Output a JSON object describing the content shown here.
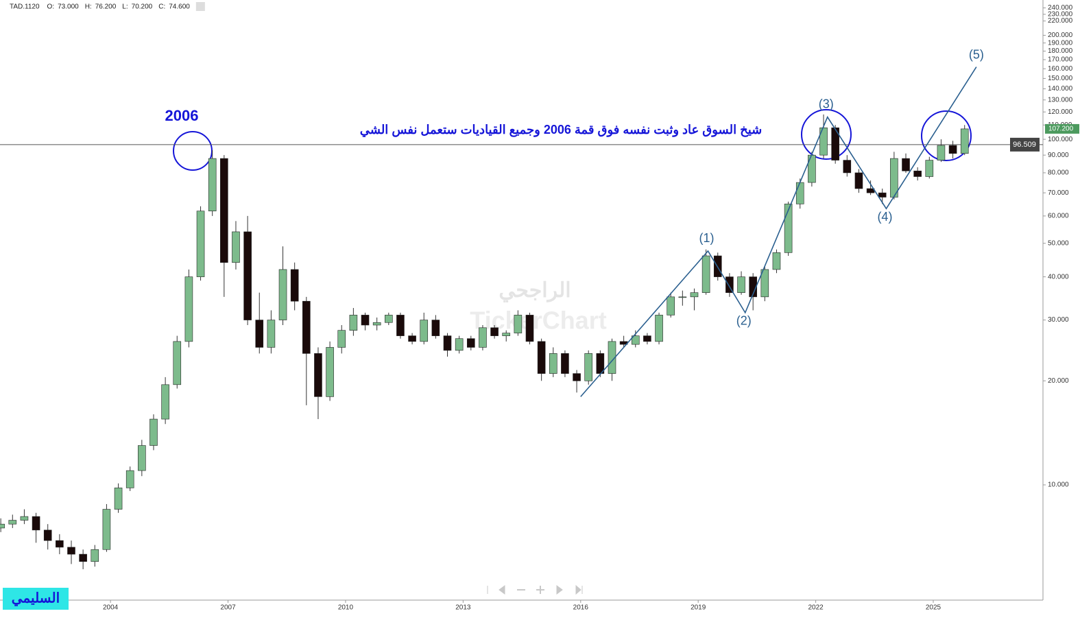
{
  "header": {
    "symbol": "TAD.1120",
    "fields": [
      {
        "label": "O:",
        "value": "73.000"
      },
      {
        "label": "H:",
        "value": "76.200"
      },
      {
        "label": "L:",
        "value": "70.200"
      },
      {
        "label": "C:",
        "value": "74.600"
      }
    ]
  },
  "chart_data": {
    "type": "candlestick",
    "log_scale": true,
    "xlim": [
      2001.18,
      2027.8
    ],
    "ylim": [
      4.64,
      253
    ],
    "xticks": [
      2004,
      2007,
      2010,
      2013,
      2016,
      2019,
      2022,
      2025
    ],
    "yticks": [
      {
        "value": 10,
        "label": "10.000"
      },
      {
        "value": 20,
        "label": "20.000"
      },
      {
        "value": 30,
        "label": "30.000"
      },
      {
        "value": 40,
        "label": "40.000"
      },
      {
        "value": 50,
        "label": "50.000"
      },
      {
        "value": 60,
        "label": "60.000"
      },
      {
        "value": 70,
        "label": "70.000"
      },
      {
        "value": 80,
        "label": "80.000"
      },
      {
        "value": 90,
        "label": "90.000"
      },
      {
        "value": 100,
        "label": "100.000"
      },
      {
        "value": 110,
        "label": "110.000"
      },
      {
        "value": 120,
        "label": "120.000"
      },
      {
        "value": 130,
        "label": "130.000"
      },
      {
        "value": 140,
        "label": "140.000"
      },
      {
        "value": 150,
        "label": "150.000"
      },
      {
        "value": 160,
        "label": "160.000"
      },
      {
        "value": 170,
        "label": "170.000"
      },
      {
        "value": 180,
        "label": "180.000"
      },
      {
        "value": 190,
        "label": "190.000"
      },
      {
        "value": 200,
        "label": "200.000"
      },
      {
        "value": 220,
        "label": "220.000"
      },
      {
        "value": 230,
        "label": "230.000"
      },
      {
        "value": 240,
        "label": "240.000"
      }
    ],
    "up_color": "#7dbb8c",
    "down_color": "#1a0a0a",
    "x": [
      2001.2,
      2001.5,
      2001.8,
      2002.1,
      2002.4,
      2002.7,
      2003.0,
      2003.3,
      2003.6,
      2003.9,
      2004.2,
      2004.5,
      2004.8,
      2005.1,
      2005.4,
      2005.7,
      2006.0,
      2006.3,
      2006.6,
      2006.9,
      2007.2,
      2007.5,
      2007.8,
      2008.1,
      2008.4,
      2008.7,
      2009.0,
      2009.3,
      2009.6,
      2009.9,
      2010.2,
      2010.5,
      2010.8,
      2011.1,
      2011.4,
      2011.7,
      2012.0,
      2012.3,
      2012.6,
      2012.9,
      2013.2,
      2013.5,
      2013.8,
      2014.1,
      2014.4,
      2014.7,
      2015.0,
      2015.3,
      2015.6,
      2015.9,
      2016.2,
      2016.5,
      2016.8,
      2017.1,
      2017.4,
      2017.7,
      2018.0,
      2018.3,
      2018.6,
      2018.9,
      2019.2,
      2019.5,
      2019.8,
      2020.1,
      2020.4,
      2020.7,
      2021.0,
      2021.3,
      2021.6,
      2021.9,
      2022.2,
      2022.5,
      2022.8,
      2023.1,
      2023.4,
      2023.7,
      2024.0,
      2024.3,
      2024.6,
      2024.9,
      2025.2,
      2025.5,
      2025.8
    ],
    "open": [
      7.5,
      7.7,
      7.9,
      8.1,
      7.4,
      6.9,
      6.6,
      6.3,
      6.0,
      6.5,
      8.5,
      9.8,
      11.0,
      13.0,
      15.5,
      19.5,
      26,
      40,
      62,
      88,
      44,
      54,
      30,
      25,
      30,
      42,
      34,
      24,
      18,
      25,
      28,
      31,
      29,
      29.5,
      31,
      27,
      26,
      30,
      27,
      24.5,
      26.5,
      25,
      28.5,
      27,
      27.5,
      31,
      26,
      21,
      24,
      21,
      20,
      24,
      21,
      26,
      25.5,
      27,
      26,
      31,
      35,
      35,
      36,
      46,
      40,
      36,
      40,
      35,
      42,
      47,
      65,
      75,
      90,
      108,
      87,
      80,
      72,
      70,
      68,
      88,
      81,
      78,
      87,
      96,
      91
    ],
    "high": [
      8.0,
      8.2,
      8.5,
      8.3,
      7.7,
      7.2,
      6.9,
      6.5,
      6.7,
      8.8,
      10.1,
      11.3,
      13.5,
      16.0,
      20.5,
      27,
      42,
      64,
      93,
      90,
      58,
      60,
      36,
      32,
      49,
      44,
      35,
      25,
      26,
      29,
      32.5,
      31.5,
      30.5,
      31.5,
      31.5,
      27.5,
      31.5,
      31,
      27.5,
      27,
      27,
      29,
      29,
      28,
      32,
      31.5,
      26.5,
      25,
      24.5,
      21.5,
      24.5,
      24.5,
      26.5,
      27,
      28,
      27.5,
      31.5,
      36,
      36.5,
      37,
      48,
      47,
      41,
      41.5,
      41,
      43,
      48,
      66,
      77,
      92,
      118,
      110,
      90,
      82,
      76,
      72,
      92,
      91,
      83,
      89,
      100,
      99,
      110
    ],
    "low": [
      7.3,
      7.5,
      7.7,
      6.8,
      6.5,
      6.3,
      5.9,
      5.7,
      5.8,
      6.4,
      8.3,
      9.6,
      10.6,
      12.6,
      15.0,
      19,
      25,
      39,
      60,
      35,
      42,
      29,
      24,
      24,
      29,
      32,
      17,
      15.5,
      17.5,
      24,
      27,
      28,
      28,
      29,
      26.5,
      25.5,
      25.5,
      26.5,
      23.5,
      24,
      24.5,
      24.5,
      26.5,
      26,
      27,
      25.5,
      20,
      20.5,
      20.5,
      18.5,
      19.5,
      20.5,
      20,
      25,
      25,
      25.5,
      25.5,
      30.5,
      33,
      32,
      35.5,
      39,
      35,
      35.5,
      32,
      34,
      41,
      46,
      63,
      73,
      88,
      85,
      78,
      70,
      69,
      65,
      67,
      80,
      76,
      77,
      86,
      88,
      90
    ],
    "close": [
      7.7,
      7.9,
      8.1,
      7.4,
      6.9,
      6.6,
      6.3,
      6.0,
      6.5,
      8.5,
      9.8,
      11.0,
      13.0,
      15.5,
      19.5,
      26,
      40,
      62,
      88,
      44,
      54,
      30,
      25,
      30,
      42,
      34,
      24,
      18,
      25,
      28,
      31,
      29,
      29.5,
      31,
      27,
      26,
      30,
      27,
      24.5,
      26.5,
      25,
      28.5,
      27,
      27.5,
      31,
      26,
      21,
      24,
      21,
      20,
      24,
      21,
      26,
      25.5,
      27,
      26,
      31,
      35,
      35,
      36,
      46,
      40,
      36,
      40,
      35,
      42,
      47,
      65,
      75,
      90,
      108,
      87,
      80,
      72,
      70,
      68,
      88,
      81,
      78,
      87,
      96,
      91,
      107.2
    ],
    "hline": 96.509,
    "last_price": {
      "value": 107.2,
      "label": "107.200"
    },
    "waves": {
      "labels": [
        "(1)",
        "(2)",
        "(3)",
        "(4)",
        "(5)"
      ],
      "x": [
        2016.0,
        2019.25,
        2020.2,
        2022.3,
        2023.8,
        2026.1
      ],
      "y": [
        18,
        47.5,
        31.5,
        116,
        63,
        162
      ]
    },
    "annotations": {
      "year_label": "2006",
      "comment": "شيخ السوق عاد وثبت نفسه فوق قمة 2006 وجميع القياديات ستعمل نفس  الشي"
    }
  },
  "watermark": {
    "arabic": "الراجحي",
    "latin": "TickerChart"
  },
  "author_tag": "السليمي"
}
